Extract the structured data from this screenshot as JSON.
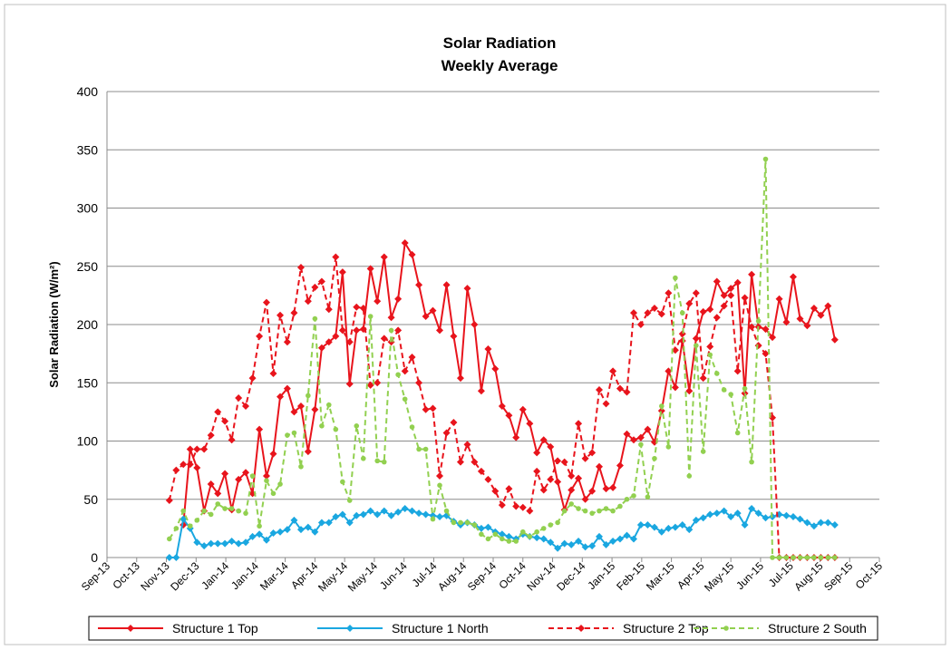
{
  "chart_data": {
    "type": "line",
    "title": "Solar Radiation",
    "subtitle": "Weekly Average",
    "y_label": "Solar Radiation (W/m²)",
    "ylim": [
      0,
      400
    ],
    "yticks": [
      0,
      50,
      100,
      150,
      200,
      250,
      300,
      350,
      400
    ],
    "grid": true,
    "xlim": [
      0,
      26
    ],
    "xticks": [
      {
        "value": 0,
        "label": "Sep-13"
      },
      {
        "value": 1,
        "label": "Oct-13"
      },
      {
        "value": 2,
        "label": "Nov-13"
      },
      {
        "value": 3,
        "label": "Dec-13"
      },
      {
        "value": 4,
        "label": "Jan-14"
      },
      {
        "value": 5,
        "label": "Jan-14"
      },
      {
        "value": 6,
        "label": "Mar-14"
      },
      {
        "value": 7,
        "label": "Apr-14"
      },
      {
        "value": 8,
        "label": "May-14"
      },
      {
        "value": 9,
        "label": "May-14"
      },
      {
        "value": 10,
        "label": "Jun-14"
      },
      {
        "value": 11,
        "label": "Jul-14"
      },
      {
        "value": 12,
        "label": "Aug-14"
      },
      {
        "value": 13,
        "label": "Sep-14"
      },
      {
        "value": 14,
        "label": "Oct-14"
      },
      {
        "value": 15,
        "label": "Nov-14"
      },
      {
        "value": 16,
        "label": "Dec-14"
      },
      {
        "value": 17,
        "label": "Jan-15"
      },
      {
        "value": 18,
        "label": "Feb-15"
      },
      {
        "value": 19,
        "label": "Mar-15"
      },
      {
        "value": 20,
        "label": "Apr-15"
      },
      {
        "value": 21,
        "label": "May-15"
      },
      {
        "value": 22,
        "label": "Jun-15"
      },
      {
        "value": 23,
        "label": "Jul-15"
      },
      {
        "value": 24,
        "label": "Aug-15"
      },
      {
        "value": 25,
        "label": "Sep-15"
      },
      {
        "value": 26,
        "label": "Oct-15"
      }
    ],
    "legend": "bottom",
    "x": [
      2.1,
      2.33,
      2.57,
      2.8,
      3.03,
      3.27,
      3.5,
      3.73,
      3.97,
      4.2,
      4.43,
      4.67,
      4.9,
      5.13,
      5.37,
      5.6,
      5.83,
      6.07,
      6.3,
      6.53,
      6.77,
      7.0,
      7.23,
      7.47,
      7.7,
      7.93,
      8.17,
      8.4,
      8.63,
      8.87,
      9.1,
      9.33,
      9.57,
      9.8,
      10.03,
      10.27,
      10.5,
      10.73,
      10.97,
      11.2,
      11.43,
      11.67,
      11.9,
      12.13,
      12.37,
      12.6,
      12.83,
      13.07,
      13.3,
      13.53,
      13.77,
      14.0,
      14.23,
      14.47,
      14.7,
      14.93,
      15.17,
      15.4,
      15.63,
      15.87,
      16.1,
      16.33,
      16.57,
      16.8,
      17.03,
      17.27,
      17.5,
      17.73,
      17.97,
      18.2,
      18.43,
      18.67,
      18.9,
      19.13,
      19.37,
      19.6,
      19.83,
      20.07,
      20.3,
      20.53,
      20.77,
      21.0,
      21.23,
      21.47,
      21.7,
      21.93,
      22.17,
      22.4,
      22.63,
      22.87,
      23.1,
      23.33,
      23.57,
      23.8,
      24.03,
      24.27,
      24.5
    ],
    "series": [
      {
        "name": "Structure 1 Top",
        "color": "#e8141c",
        "dash": false,
        "marker": "diamond",
        "values": [
          null,
          null,
          28,
          93,
          77,
          40,
          63,
          55,
          72,
          41,
          67,
          73,
          55,
          110,
          70,
          89,
          138,
          145,
          125,
          130,
          91,
          127,
          180,
          185,
          190,
          245,
          149,
          195,
          196,
          248,
          220,
          258,
          206,
          222,
          270,
          260,
          234,
          207,
          212,
          195,
          234,
          190,
          154,
          231,
          200,
          143,
          179,
          162,
          130,
          122,
          103,
          127,
          115,
          90,
          101,
          95,
          65,
          41,
          58,
          68,
          50,
          57,
          78,
          59,
          60,
          79,
          106,
          101,
          103,
          110,
          99,
          126,
          160,
          146,
          186,
          143,
          188,
          211,
          213,
          237,
          225,
          231,
          236,
          141,
          243,
          198,
          196,
          189,
          222,
          202,
          241,
          205,
          199,
          214,
          208,
          216,
          187
        ]
      },
      {
        "name": "Structure 1 North",
        "color": "#1aa7e0",
        "dash": false,
        "marker": "diamond",
        "values": [
          0,
          0,
          33,
          25,
          13,
          10,
          12,
          12,
          12,
          14,
          12,
          13,
          18,
          20,
          15,
          21,
          22,
          24,
          32,
          24,
          26,
          22,
          30,
          30,
          35,
          37,
          30,
          36,
          37,
          40,
          37,
          40,
          36,
          39,
          42,
          40,
          38,
          37,
          36,
          35,
          36,
          31,
          28,
          30,
          28,
          25,
          26,
          22,
          20,
          18,
          16,
          20,
          18,
          17,
          16,
          13,
          8,
          12,
          11,
          14,
          9,
          10,
          18,
          11,
          14,
          16,
          19,
          16,
          28,
          28,
          26,
          22,
          25,
          26,
          28,
          24,
          32,
          34,
          37,
          38,
          40,
          35,
          38,
          28,
          42,
          38,
          34,
          35,
          37,
          36,
          35,
          33,
          30,
          27,
          30,
          30,
          28
        ]
      },
      {
        "name": "Structure 2 Top",
        "color": "#e8141c",
        "dash": true,
        "marker": "diamond",
        "values": [
          49,
          75,
          80,
          80,
          93,
          93,
          105,
          125,
          117,
          101,
          137,
          130,
          154,
          190,
          219,
          158,
          208,
          185,
          210,
          249,
          220,
          232,
          237,
          213,
          258,
          195,
          185,
          215,
          214,
          148,
          150,
          188,
          185,
          195,
          160,
          172,
          150,
          127,
          128,
          70,
          107,
          116,
          82,
          97,
          82,
          74,
          67,
          57,
          45,
          59,
          44,
          43,
          40,
          74,
          58,
          67,
          83,
          82,
          70,
          115,
          85,
          90,
          144,
          132,
          160,
          145,
          142,
          210,
          200,
          210,
          214,
          209,
          227,
          178,
          192,
          218,
          227,
          154,
          181,
          206,
          216,
          225,
          160,
          223,
          198,
          182,
          175,
          120,
          0,
          0,
          0,
          0,
          0,
          0,
          0,
          0,
          0
        ]
      },
      {
        "name": "Structure 2 South",
        "color": "#92d050",
        "dash": true,
        "marker": "circle",
        "values": [
          16,
          25,
          40,
          27,
          32,
          40,
          37,
          46,
          42,
          42,
          40,
          38,
          70,
          27,
          66,
          55,
          63,
          105,
          107,
          78,
          139,
          205,
          113,
          131,
          110,
          65,
          49,
          113,
          85,
          207,
          83,
          82,
          195,
          157,
          136,
          112,
          93,
          93,
          33,
          62,
          40,
          30,
          30,
          30,
          28,
          20,
          16,
          20,
          16,
          14,
          14,
          22,
          18,
          22,
          25,
          28,
          30,
          40,
          46,
          42,
          40,
          38,
          40,
          42,
          40,
          44,
          50,
          53,
          97,
          52,
          85,
          130,
          95,
          240,
          210,
          70,
          182,
          91,
          174,
          158,
          144,
          140,
          107,
          145,
          82,
          203,
          342,
          0,
          0,
          0,
          0,
          0,
          0,
          0,
          0,
          0,
          0
        ]
      }
    ]
  }
}
